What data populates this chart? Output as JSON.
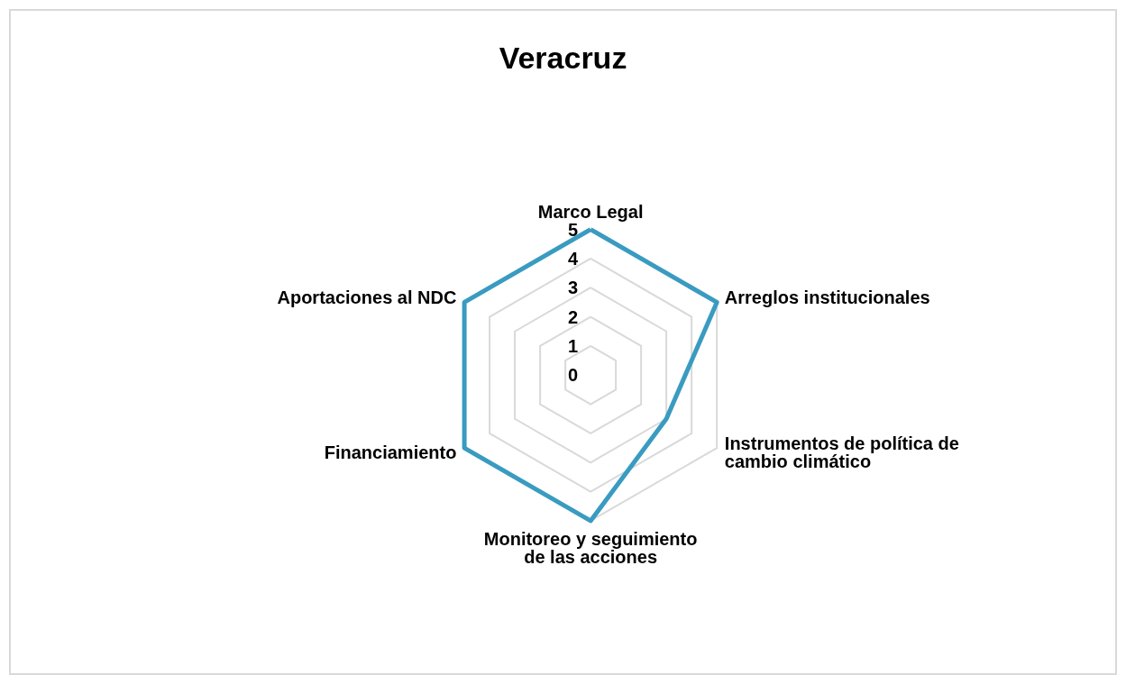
{
  "chart_data": {
    "type": "radar",
    "title": "Veracruz",
    "categories": [
      "Marco Legal",
      "Arreglos institucionales",
      "Instrumentos de política de\ncambio climático",
      "Monitoreo y seguimiento\nde las acciones",
      "Financiamiento",
      "Aportaciones al NDC"
    ],
    "series": [
      {
        "color": "#3a9bc1",
        "values": [
          5,
          5,
          3,
          5,
          5,
          5
        ]
      }
    ],
    "ylim": [
      0,
      5
    ],
    "yticks": [
      0,
      1,
      2,
      3,
      4,
      5
    ],
    "grid": true
  }
}
